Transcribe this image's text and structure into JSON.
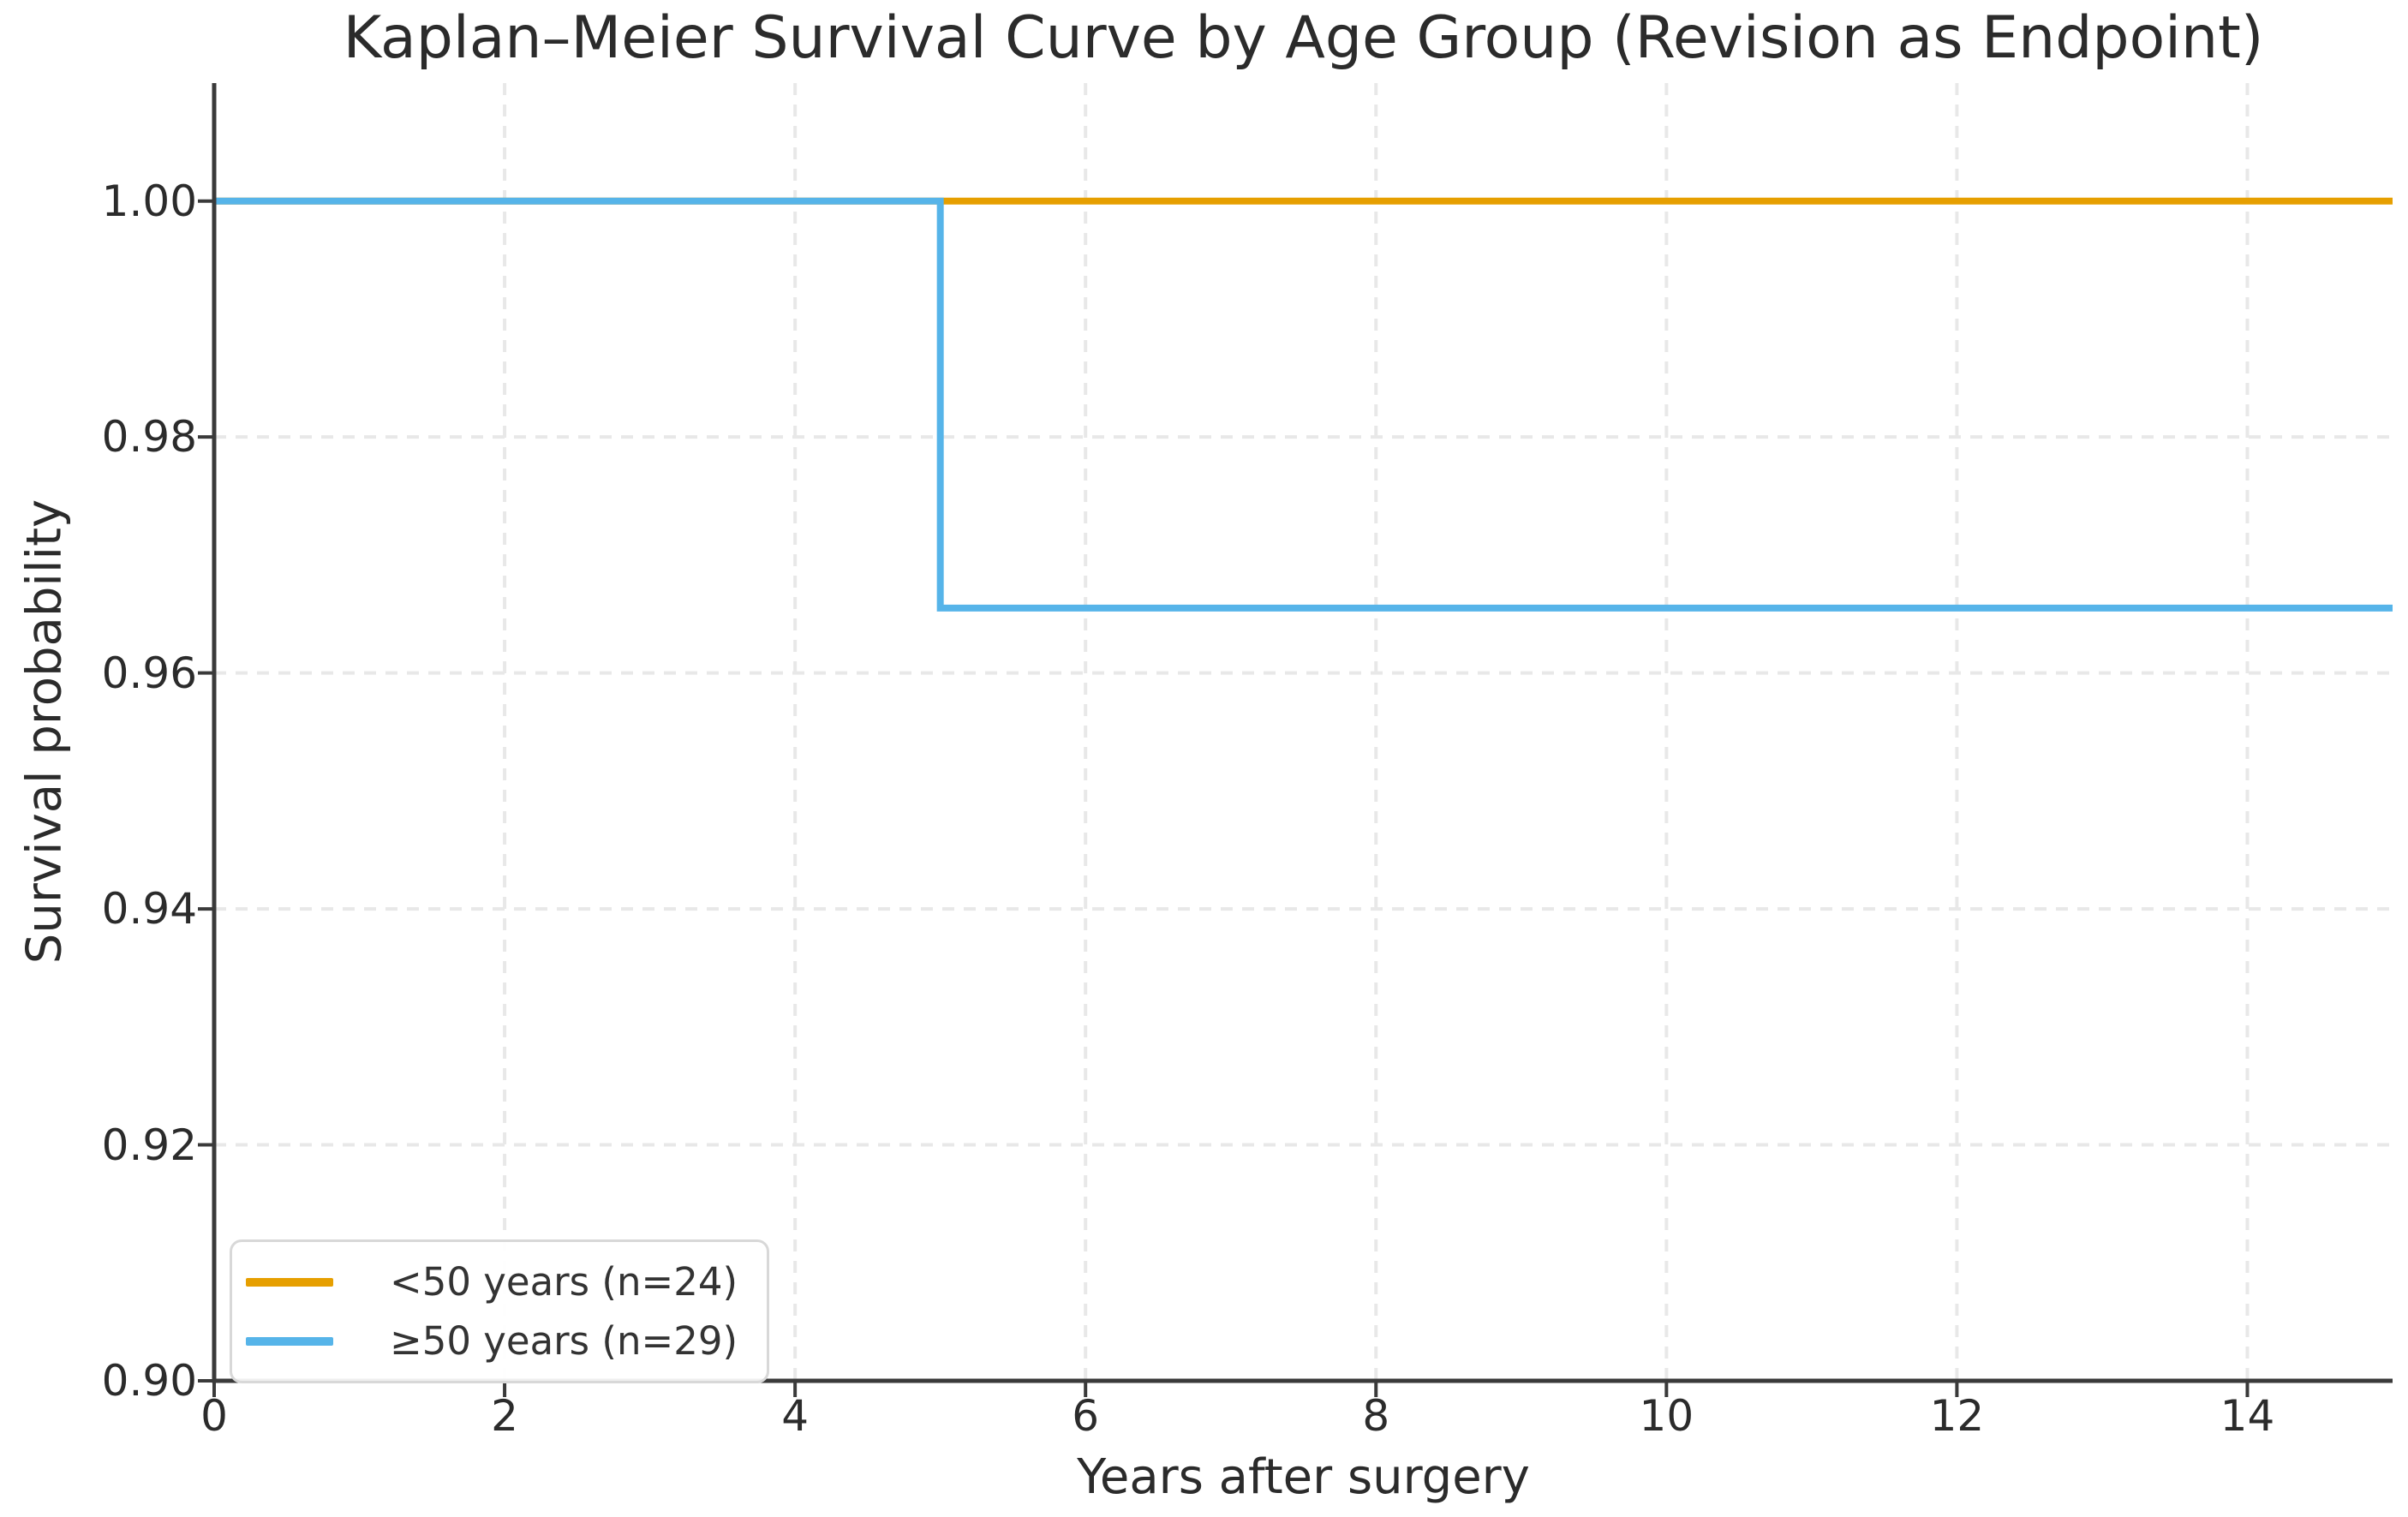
{
  "figure": {
    "title": "Kaplan–Meier Survival Curve by Age Group (Revision as Endpoint)",
    "background_color": "#ffffff",
    "text_color": "#2b2b2b",
    "spine_color": "#3a3a3a",
    "grid_color": "#e8e8e8"
  },
  "chart_data": {
    "type": "line",
    "subtype": "kaplan-meier-step",
    "title": "Kaplan–Meier Survival Curve by Age Group (Revision as Endpoint)",
    "xlabel": "Years after surgery",
    "ylabel": "Survival probability",
    "xlim": [
      0,
      15
    ],
    "ylim": [
      0.9,
      1.01
    ],
    "x_ticks": [
      {
        "value": 0,
        "label": "0"
      },
      {
        "value": 2,
        "label": "2"
      },
      {
        "value": 4,
        "label": "4"
      },
      {
        "value": 6,
        "label": "6"
      },
      {
        "value": 8,
        "label": "8"
      },
      {
        "value": 10,
        "label": "10"
      },
      {
        "value": 12,
        "label": "12"
      },
      {
        "value": 14,
        "label": "14"
      }
    ],
    "y_ticks": [
      {
        "value": 1.0,
        "label": "1.00"
      },
      {
        "value": 0.98,
        "label": "0.98"
      },
      {
        "value": 0.96,
        "label": "0.96"
      },
      {
        "value": 0.94,
        "label": "0.94"
      },
      {
        "value": 0.92,
        "label": "0.92"
      },
      {
        "value": 0.9,
        "label": "0.90"
      }
    ],
    "grid": true,
    "grid_style": "dashed",
    "legend_position": "lower-left",
    "series": [
      {
        "name": "<50 years (n=24)",
        "color": "#E69F00",
        "points": [
          [
            0,
            1.0
          ],
          [
            15,
            1.0
          ]
        ]
      },
      {
        "name": "≥50 years (n=29)",
        "color": "#56B4E9",
        "points": [
          [
            0,
            1.0
          ],
          [
            5,
            1.0
          ],
          [
            5,
            0.9655
          ],
          [
            15,
            0.9655
          ]
        ]
      }
    ]
  }
}
